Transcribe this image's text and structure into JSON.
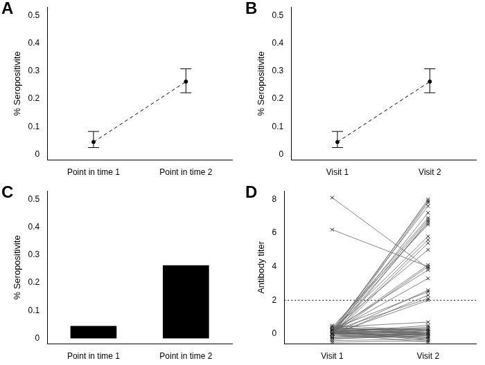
{
  "chart_data": [
    {
      "type": "line",
      "title": "A",
      "y_label": "% Seropositivite",
      "categories": [
        "Point in time 1",
        "Point in time 2"
      ],
      "values": [
        0.045,
        0.262
      ],
      "error_low": [
        0.025,
        0.222
      ],
      "error_high": [
        0.083,
        0.308
      ],
      "color": "#000000",
      "marker": "circle",
      "line_style": "dashed",
      "ylim": [
        -0.02,
        0.53
      ],
      "yticks": [
        0,
        0.1,
        0.2,
        0.3,
        0.4,
        0.5
      ],
      "grid": false
    },
    {
      "type": "line",
      "title": "B",
      "y_label": "% Seropositivite",
      "categories": [
        "Visit 1",
        "Visit 2"
      ],
      "values": [
        0.045,
        0.262
      ],
      "error_low": [
        0.025,
        0.222
      ],
      "error_high": [
        0.083,
        0.308
      ],
      "color": "#000000",
      "marker": "circle",
      "line_style": "dashed",
      "ylim": [
        -0.02,
        0.53
      ],
      "yticks": [
        0,
        0.1,
        0.2,
        0.3,
        0.4,
        0.5
      ],
      "grid": false
    },
    {
      "type": "bar",
      "title": "C",
      "y_label": "% Seropositivite",
      "categories": [
        "Point in time 1",
        "Point in time 2"
      ],
      "values": [
        0.045,
        0.263
      ],
      "color": "#000000",
      "ylim": [
        -0.02,
        0.53
      ],
      "yticks": [
        0,
        0.1,
        0.2,
        0.3,
        0.4,
        0.5
      ],
      "grid": false
    },
    {
      "type": "line",
      "title": "D",
      "y_label": "Antibody titer",
      "categories": [
        "Visit 1",
        "Visit 2"
      ],
      "color": "#666666",
      "marker": "cross",
      "line_style": "solid",
      "hline": 2,
      "ylim": [
        -0.6,
        8.5
      ],
      "yticks": [
        0,
        2,
        4,
        6,
        8
      ],
      "grid": false,
      "series": [
        {
          "values": [
            0.0,
            8.0
          ]
        },
        {
          "values": [
            0.1,
            7.9
          ]
        },
        {
          "values": [
            -0.1,
            7.8
          ]
        },
        {
          "values": [
            0.2,
            7.6
          ]
        },
        {
          "values": [
            0.0,
            7.2
          ]
        },
        {
          "values": [
            0.3,
            6.9
          ]
        },
        {
          "values": [
            0.1,
            6.8
          ]
        },
        {
          "values": [
            -0.2,
            6.7
          ]
        },
        {
          "values": [
            0.0,
            6.6
          ]
        },
        {
          "values": [
            0.4,
            6.5
          ]
        },
        {
          "values": [
            0.2,
            5.8
          ]
        },
        {
          "values": [
            0.0,
            5.6
          ]
        },
        {
          "values": [
            -0.1,
            5.4
          ]
        },
        {
          "values": [
            0.3,
            5.0
          ]
        },
        {
          "values": [
            0.1,
            4.1
          ]
        },
        {
          "values": [
            0.0,
            4.0
          ]
        },
        {
          "values": [
            0.2,
            3.8
          ]
        },
        {
          "values": [
            0.1,
            3.3
          ]
        },
        {
          "values": [
            0.0,
            2.6
          ]
        },
        {
          "values": [
            0.3,
            2.5
          ]
        },
        {
          "values": [
            -0.1,
            2.3
          ]
        },
        {
          "values": [
            0.2,
            2.1
          ]
        },
        {
          "values": [
            0.0,
            2.0
          ]
        },
        {
          "values": [
            0.4,
            0.7
          ]
        },
        {
          "values": [
            0.1,
            0.5
          ]
        },
        {
          "values": [
            8.1,
            3.9
          ]
        },
        {
          "values": [
            6.2,
            4.0
          ]
        },
        {
          "values": [
            0.0,
            0.0
          ]
        },
        {
          "values": [
            0.1,
            -0.1
          ]
        },
        {
          "values": [
            -0.2,
            0.1
          ]
        },
        {
          "values": [
            0.3,
            0.2
          ]
        },
        {
          "values": [
            -0.4,
            -0.3
          ]
        },
        {
          "values": [
            0.2,
            0.0
          ]
        },
        {
          "values": [
            0.0,
            0.3
          ]
        },
        {
          "values": [
            -0.1,
            -0.2
          ]
        },
        {
          "values": [
            0.4,
            0.1
          ]
        },
        {
          "values": [
            0.1,
            0.4
          ]
        },
        {
          "values": [
            -0.3,
            0.0
          ]
        },
        {
          "values": [
            0.2,
            -0.4
          ]
        },
        {
          "values": [
            0.0,
            -0.1
          ]
        },
        {
          "values": [
            0.3,
            0.3
          ]
        },
        {
          "values": [
            -0.2,
            -0.2
          ]
        },
        {
          "values": [
            0.1,
            0.1
          ]
        },
        {
          "values": [
            0.5,
            0.2
          ]
        },
        {
          "values": [
            -0.1,
            0.0
          ]
        },
        {
          "values": [
            0.0,
            0.2
          ]
        },
        {
          "values": [
            0.2,
            0.1
          ]
        },
        {
          "values": [
            -0.3,
            -0.1
          ]
        },
        {
          "values": [
            0.1,
            -0.3
          ]
        },
        {
          "values": [
            0.4,
            0.0
          ]
        },
        {
          "values": [
            0.0,
            0.1
          ]
        },
        {
          "values": [
            -0.5,
            -0.4
          ]
        },
        {
          "values": [
            0.2,
            0.3
          ]
        },
        {
          "values": [
            0.1,
            -0.2
          ]
        },
        {
          "values": [
            -0.2,
            0.0
          ]
        },
        {
          "values": [
            0.3,
            -0.1
          ]
        },
        {
          "values": [
            0.0,
            -0.5
          ]
        }
      ]
    }
  ]
}
